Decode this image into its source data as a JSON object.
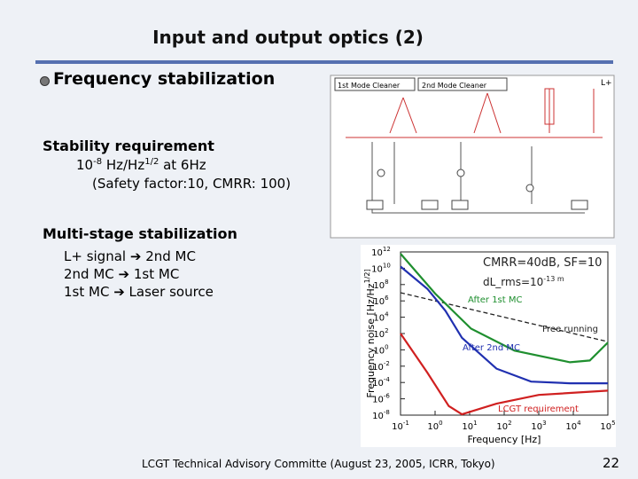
{
  "slide": {
    "title": "Input and output optics (2)",
    "bullet": "Frequency stabilization",
    "stability": {
      "heading": "Stability requirement",
      "base": "10",
      "exp": "-8",
      "unit": " Hz/Hz",
      "unit_exp": "1/2",
      "rest": " at 6Hz",
      "note": "(Safety factor:10, CMRR: 100)"
    },
    "multistage": {
      "heading": "Multi-stage stabilization",
      "items": [
        {
          "from": "L+ signal",
          "to": "2nd MC"
        },
        {
          "from": "2nd MC",
          "to": "1st MC"
        },
        {
          "from": "1st MC",
          "to": "Laser source"
        }
      ]
    },
    "diagram": {
      "labels": [
        "1st Mode Cleaner",
        "2nd Mode Cleaner",
        "L+"
      ]
    },
    "footer": "LCGT  Technical Advisory Committe (August 23, 2005, ICRR, Tokyo)",
    "page": "22"
  },
  "chart_data": {
    "type": "line",
    "xlabel": "Frequency [Hz]",
    "ylabel": "Frequency noise [Hz/Hz^1/2]",
    "log_x": true,
    "log_y": true,
    "xlim": [
      0.1,
      100000
    ],
    "ylim": [
      1e-08,
      1000000000000.0
    ],
    "xticks": [
      {
        "value": 0.1,
        "label": "10^-1"
      },
      {
        "value": 1,
        "label": "10^0"
      },
      {
        "value": 10,
        "label": "10^1"
      },
      {
        "value": 100,
        "label": "10^2"
      },
      {
        "value": 1000,
        "label": "10^3"
      },
      {
        "value": 10000,
        "label": "10^4"
      },
      {
        "value": 100000,
        "label": "10^5"
      }
    ],
    "yticks": [
      {
        "value": 1e-08,
        "label": "10^-8"
      },
      {
        "value": 1e-06,
        "label": "10^-6"
      },
      {
        "value": 0.0001,
        "label": "10^-4"
      },
      {
        "value": 0.01,
        "label": "10^-2"
      },
      {
        "value": 1,
        "label": "10^0"
      },
      {
        "value": 100,
        "label": "10^2"
      },
      {
        "value": 10000,
        "label": "10^4"
      },
      {
        "value": 1000000,
        "label": "10^6"
      },
      {
        "value": 100000000,
        "label": "10^8"
      },
      {
        "value": 10000000000,
        "label": "10^10"
      },
      {
        "value": 1000000000000,
        "label": "10^12"
      }
    ],
    "annotations": [
      "CMRR=40dB, SF=10",
      "dL_rms=10^-13 m",
      "After 1st MC",
      "Free running",
      "After 2nd MC",
      "LCGT requirement"
    ],
    "series": [
      {
        "name": "Free running",
        "color": "#222222",
        "dashed": true,
        "x": [
          0.1,
          100000
        ],
        "values": [
          10000000.0,
          10
        ]
      },
      {
        "name": "After 1st MC",
        "color": "#1f8f2f",
        "x": [
          0.1,
          1,
          11,
          200,
          8000,
          30000,
          100000
        ],
        "values": [
          600000000000.0,
          8000000.0,
          400,
          0.8,
          0.03,
          0.05,
          8
        ]
      },
      {
        "name": "After 2nd MC",
        "color": "#2030b0",
        "x": [
          0.1,
          0.6,
          2,
          6,
          60,
          600,
          8000,
          100000
        ],
        "values": [
          16000000000.0,
          30000000.0,
          60000.0,
          30,
          0.005,
          0.00013,
          8e-05,
          8e-05
        ]
      },
      {
        "name": "LCGT requirement",
        "color": "#d02020",
        "x": [
          0.1,
          0.6,
          2.5,
          6,
          60,
          1000,
          100000
        ],
        "values": [
          100,
          0.0016,
          1.3e-07,
          1.3e-08,
          2.5e-07,
          3e-06,
          1e-05
        ]
      }
    ]
  }
}
